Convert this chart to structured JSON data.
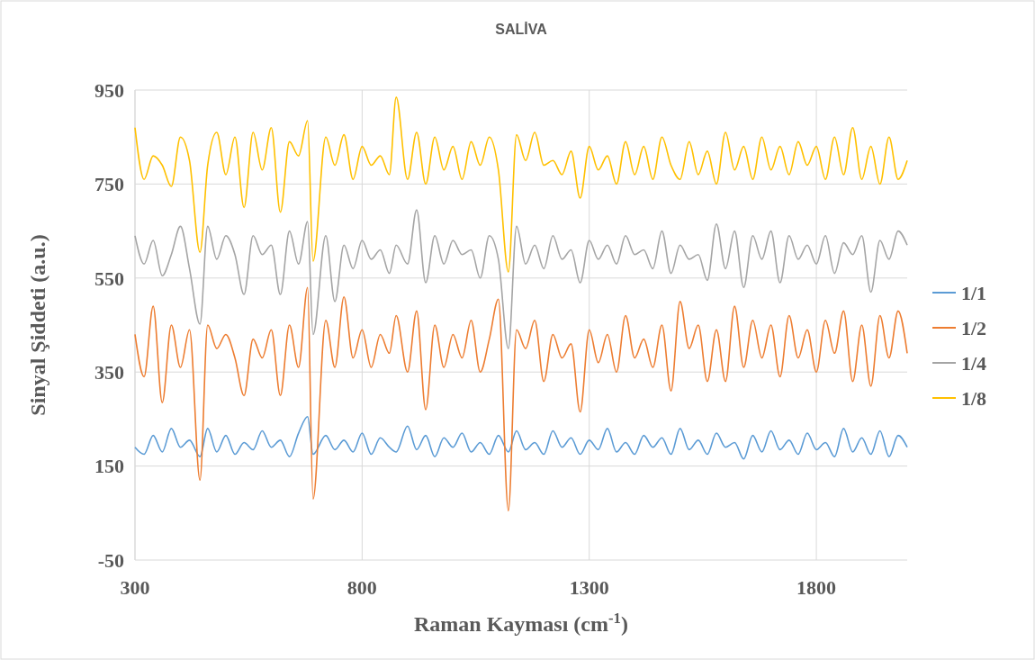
{
  "chart_data": {
    "type": "line",
    "title": "SALİVA",
    "xlabel": "Raman Kayması (cm$^{-1}$)",
    "ylabel": "Sinyal Şiddeti (a.u.)",
    "xlim": [
      300,
      2000
    ],
    "xticks": [
      300,
      800,
      1300,
      1800
    ],
    "ylim": [
      -50,
      950
    ],
    "yticks": [
      -50,
      150,
      350,
      550,
      750,
      950
    ],
    "grid": true,
    "legend": "right",
    "x": [
      300,
      320,
      340,
      360,
      380,
      400,
      420,
      443,
      460,
      480,
      500,
      520,
      540,
      560,
      580,
      600,
      620,
      640,
      660,
      680,
      692,
      720,
      740,
      760,
      780,
      800,
      820,
      840,
      860,
      875,
      900,
      920,
      940,
      960,
      980,
      1000,
      1020,
      1040,
      1060,
      1080,
      1100,
      1122,
      1140,
      1160,
      1180,
      1200,
      1220,
      1240,
      1260,
      1280,
      1300,
      1320,
      1340,
      1360,
      1380,
      1400,
      1420,
      1440,
      1460,
      1480,
      1500,
      1520,
      1540,
      1560,
      1580,
      1600,
      1620,
      1640,
      1660,
      1680,
      1700,
      1720,
      1740,
      1760,
      1780,
      1800,
      1820,
      1840,
      1860,
      1880,
      1900,
      1920,
      1940,
      1960,
      1980,
      2000
    ],
    "series": [
      {
        "name": "1/1",
        "color": "#5b9bd5",
        "values": [
          190,
          175,
          215,
          180,
          230,
          190,
          205,
          170,
          230,
          180,
          215,
          175,
          200,
          185,
          225,
          190,
          205,
          170,
          220,
          255,
          175,
          215,
          185,
          205,
          180,
          220,
          175,
          210,
          190,
          180,
          235,
          185,
          215,
          170,
          210,
          190,
          220,
          180,
          200,
          175,
          215,
          180,
          225,
          185,
          200,
          175,
          225,
          190,
          210,
          175,
          205,
          185,
          230,
          180,
          200,
          175,
          215,
          190,
          210,
          175,
          230,
          185,
          205,
          175,
          220,
          190,
          200,
          165,
          215,
          180,
          225,
          185,
          205,
          175,
          220,
          185,
          200,
          170,
          230,
          180,
          210,
          175,
          225,
          170,
          215,
          190
        ]
      },
      {
        "name": "1/2",
        "color": "#ed7d31",
        "values": [
          430,
          340,
          490,
          285,
          450,
          360,
          440,
          120,
          450,
          400,
          430,
          380,
          300,
          420,
          380,
          440,
          300,
          450,
          360,
          530,
          80,
          460,
          360,
          510,
          380,
          440,
          360,
          430,
          390,
          470,
          350,
          480,
          270,
          450,
          360,
          430,
          380,
          460,
          350,
          420,
          505,
          55,
          440,
          400,
          460,
          330,
          430,
          380,
          410,
          265,
          440,
          370,
          430,
          350,
          470,
          380,
          420,
          360,
          450,
          310,
          500,
          400,
          450,
          330,
          440,
          330,
          490,
          360,
          460,
          380,
          450,
          340,
          470,
          380,
          440,
          350,
          460,
          390,
          480,
          330,
          450,
          320,
          470,
          380,
          480,
          390
        ]
      },
      {
        "name": "1/4",
        "color": "#a5a5a5",
        "values": [
          640,
          580,
          630,
          555,
          600,
          660,
          570,
          452,
          660,
          590,
          640,
          600,
          515,
          640,
          600,
          620,
          515,
          650,
          580,
          670,
          430,
          640,
          500,
          620,
          570,
          630,
          590,
          610,
          560,
          620,
          580,
          695,
          540,
          640,
          580,
          630,
          600,
          610,
          550,
          640,
          590,
          400,
          660,
          580,
          620,
          570,
          640,
          590,
          610,
          540,
          630,
          590,
          620,
          580,
          640,
          600,
          610,
          570,
          650,
          560,
          620,
          590,
          600,
          545,
          665,
          570,
          650,
          530,
          640,
          590,
          650,
          540,
          640,
          590,
          620,
          580,
          640,
          560,
          625,
          600,
          640,
          520,
          630,
          590,
          650,
          620
        ]
      },
      {
        "name": "1/8",
        "color": "#ffc000",
        "values": [
          870,
          760,
          810,
          790,
          745,
          850,
          800,
          605,
          790,
          860,
          770,
          850,
          700,
          860,
          780,
          870,
          690,
          840,
          810,
          885,
          586,
          850,
          790,
          855,
          760,
          830,
          790,
          810,
          770,
          935,
          760,
          860,
          750,
          850,
          780,
          830,
          760,
          840,
          790,
          850,
          780,
          563,
          855,
          800,
          860,
          790,
          800,
          770,
          820,
          720,
          830,
          780,
          810,
          750,
          840,
          770,
          830,
          760,
          850,
          790,
          760,
          840,
          770,
          820,
          750,
          860,
          780,
          830,
          760,
          850,
          780,
          830,
          770,
          840,
          790,
          830,
          760,
          850,
          770,
          870,
          760,
          830,
          750,
          850,
          760,
          800
        ]
      }
    ]
  }
}
